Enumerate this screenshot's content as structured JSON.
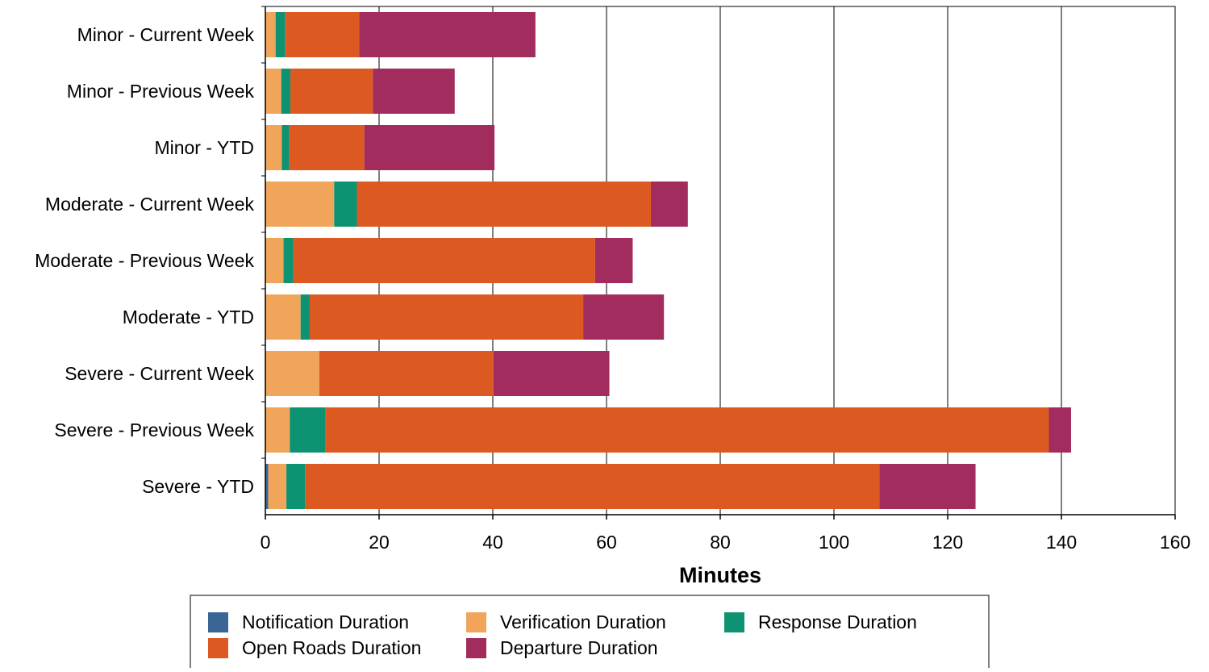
{
  "colors": {
    "notification": "#3A6695",
    "verification": "#F0A55A",
    "response": "#0E9372",
    "open_roads": "#DC5A22",
    "departure": "#A22C5E",
    "gridline": "#000000",
    "axis": "#000000"
  },
  "chart_data": {
    "type": "bar",
    "orientation": "horizontal",
    "stacked": true,
    "title": "",
    "xlabel": "Minutes",
    "ylabel": "",
    "xlim": [
      0,
      160
    ],
    "xticks": [
      "0",
      "20",
      "40",
      "60",
      "80",
      "100",
      "120",
      "140",
      "160"
    ],
    "grid": "vertical",
    "legend_position": "bottom",
    "categories": [
      "Minor - Current Week",
      "Minor - Previous Week",
      "Minor - YTD",
      "Moderate - Current Week",
      "Moderate - Previous Week",
      "Moderate - YTD",
      "Severe - Current Week",
      "Severe - Previous Week",
      "Severe - YTD"
    ],
    "series": [
      {
        "name": "Notification Duration",
        "color_key": "notification",
        "values": [
          0,
          0,
          0,
          0,
          0,
          0,
          0,
          0,
          0.5
        ]
      },
      {
        "name": "Verification Duration",
        "color_key": "verification",
        "values": [
          1.8,
          2.8,
          2.9,
          12.1,
          3.2,
          6.2,
          9.5,
          4.3,
          3.2
        ]
      },
      {
        "name": "Response Duration",
        "color_key": "response",
        "values": [
          1.7,
          1.6,
          1.3,
          4.0,
          1.7,
          1.6,
          0,
          6.3,
          3.3
        ]
      },
      {
        "name": "Open Roads Duration",
        "color_key": "open_roads",
        "values": [
          13.0,
          14.5,
          13.2,
          51.7,
          53.1,
          48.1,
          30.6,
          127.2,
          101.0
        ]
      },
      {
        "name": "Departure Duration",
        "color_key": "departure",
        "values": [
          31.0,
          14.4,
          22.9,
          6.5,
          6.6,
          14.2,
          20.4,
          3.9,
          16.9
        ]
      }
    ]
  }
}
